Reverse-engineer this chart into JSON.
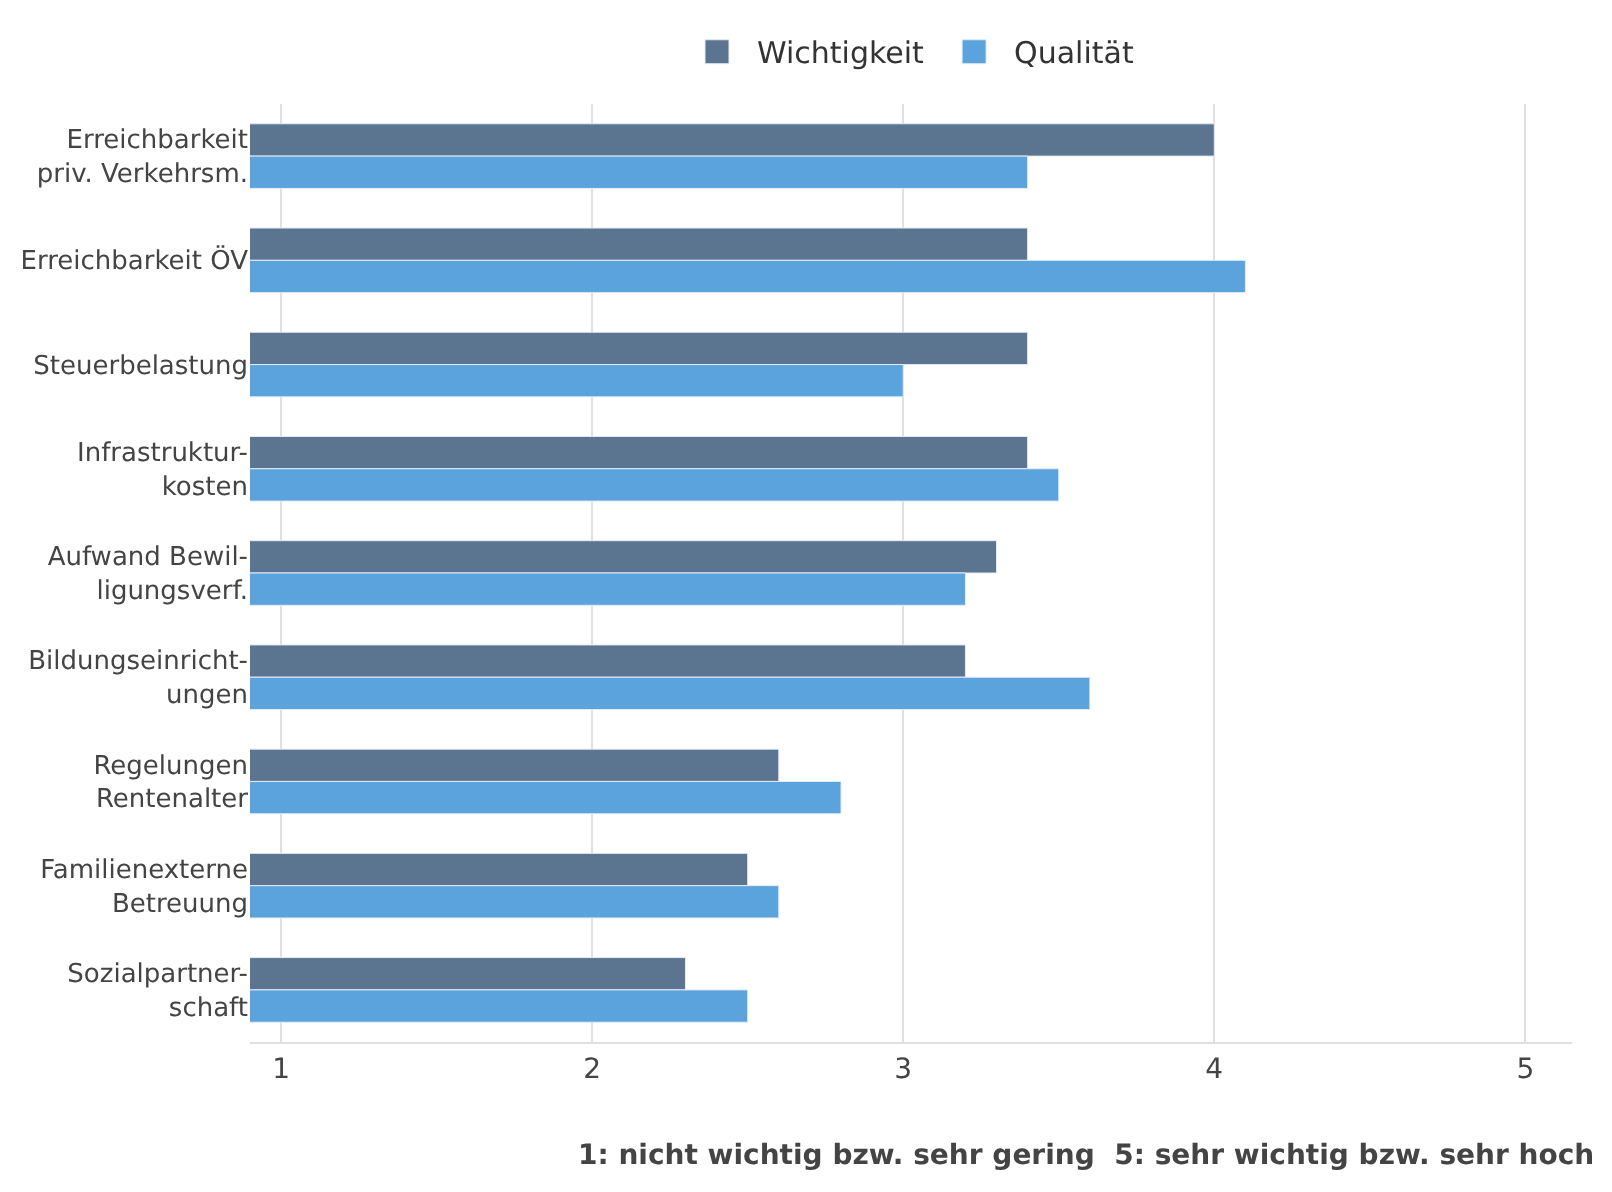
{
  "chart_data": {
    "type": "bar",
    "orientation": "horizontal",
    "categories": [
      "Erreichbarkeit\npriv. Verkehrsm.",
      "Erreichbarkeit ÖV",
      "Steuerbelastung",
      "Infrastruktur-\nkosten",
      "Aufwand Bewil-\nligungsverf.",
      "Bildungseinricht-\nungen",
      "Regelungen\nRentenalter",
      "Familienexterne\nBetreuung",
      "Sozialpartner-\nschaft"
    ],
    "series": [
      {
        "name": "Wichtigkeit",
        "color": "#5b7590",
        "values": [
          4.0,
          3.4,
          3.4,
          3.4,
          3.3,
          3.2,
          2.6,
          2.5,
          2.3
        ]
      },
      {
        "name": "Qualität",
        "color": "#5ba3dc",
        "values": [
          3.4,
          4.1,
          3.0,
          3.5,
          3.2,
          3.6,
          2.8,
          2.6,
          2.5
        ]
      }
    ],
    "xlim": [
      0.9,
      5.15
    ],
    "xticks": [
      1,
      2,
      3,
      4,
      5
    ],
    "grid": "x",
    "legend": "top",
    "annotations": [
      "1: nicht wichtig bzw. sehr gering  5: sehr wichtig bzw. sehr hoch"
    ]
  }
}
